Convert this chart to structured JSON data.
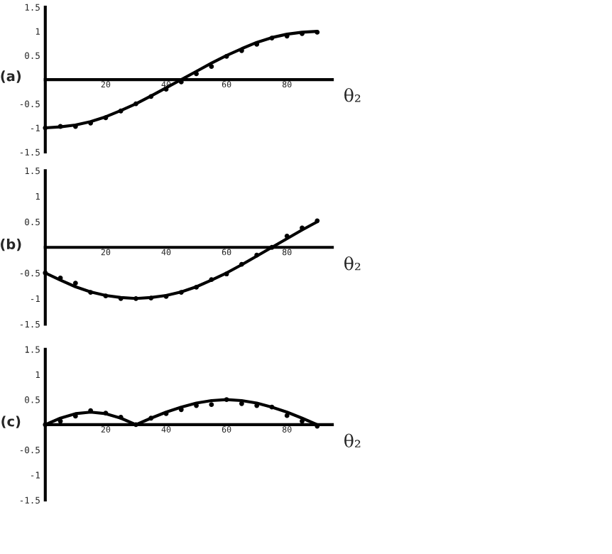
{
  "chart_data": [
    {
      "type": "line",
      "ylabel": "(a)",
      "xlabel": "θ₂",
      "xlim": [
        0,
        95
      ],
      "ylim": [
        -1.5,
        1.5
      ],
      "xticks": [
        20,
        40,
        60,
        80
      ],
      "yticks": [
        -1.5,
        -1,
        -0.5,
        0.5,
        1,
        1.5
      ],
      "grid": false,
      "legend": false,
      "x": [
        0,
        5,
        10,
        15,
        20,
        25,
        30,
        35,
        40,
        45,
        50,
        55,
        60,
        65,
        70,
        75,
        80,
        85,
        90
      ],
      "series": [
        {
          "color": "#000000",
          "marker": "none",
          "values": [
            -1,
            -0.98,
            -0.94,
            -0.87,
            -0.77,
            -0.64,
            -0.5,
            -0.34,
            -0.17,
            0,
            0.17,
            0.34,
            0.5,
            0.64,
            0.77,
            0.87,
            0.94,
            0.98,
            1
          ]
        },
        {
          "type": "scatter",
          "color": "#000000",
          "marker": "circle",
          "values": [
            -1,
            -0.97,
            -0.97,
            -0.9,
            -0.79,
            -0.65,
            -0.5,
            -0.35,
            -0.2,
            -0.05,
            0.12,
            0.27,
            0.48,
            0.6,
            0.73,
            0.86,
            0.9,
            0.95,
            0.98
          ]
        }
      ]
    },
    {
      "type": "line",
      "ylabel": "(b)",
      "xlabel": "θ₂",
      "xlim": [
        0,
        95
      ],
      "ylim": [
        -1.5,
        1.5
      ],
      "xticks": [
        20,
        40,
        60,
        80
      ],
      "yticks": [
        -1.5,
        -1,
        -0.5,
        0.5,
        1,
        1.5
      ],
      "grid": false,
      "legend": false,
      "x": [
        0,
        5,
        10,
        15,
        20,
        25,
        30,
        35,
        40,
        45,
        50,
        55,
        60,
        65,
        70,
        75,
        80,
        85,
        90
      ],
      "series": [
        {
          "color": "#000000",
          "marker": "none",
          "values": [
            -0.5,
            -0.64,
            -0.77,
            -0.87,
            -0.94,
            -0.98,
            -1,
            -0.98,
            -0.94,
            -0.87,
            -0.77,
            -0.64,
            -0.5,
            -0.34,
            -0.17,
            0,
            0.17,
            0.34,
            0.5
          ]
        },
        {
          "type": "scatter",
          "color": "#000000",
          "marker": "circle",
          "values": [
            -0.5,
            -0.6,
            -0.7,
            -0.88,
            -0.95,
            -1,
            -1,
            -0.99,
            -0.96,
            -0.88,
            -0.78,
            -0.63,
            -0.52,
            -0.33,
            -0.15,
            0,
            0.22,
            0.38,
            0.52
          ]
        }
      ]
    },
    {
      "type": "line",
      "ylabel": "(c)",
      "xlabel": "θ₂",
      "xlim": [
        0,
        95
      ],
      "ylim": [
        -1.5,
        1.5
      ],
      "xticks": [
        20,
        40,
        60,
        80
      ],
      "yticks": [
        -1.5,
        -1,
        -0.5,
        0.5,
        1,
        1.5
      ],
      "grid": false,
      "legend": false,
      "x": [
        0,
        5,
        10,
        15,
        20,
        25,
        30,
        35,
        40,
        45,
        50,
        55,
        60,
        65,
        70,
        75,
        80,
        85,
        90
      ],
      "series": [
        {
          "color": "#000000",
          "marker": "none",
          "values": [
            0,
            0.13,
            0.22,
            0.25,
            0.22,
            0.13,
            0,
            0.13,
            0.25,
            0.35,
            0.43,
            0.48,
            0.5,
            0.48,
            0.43,
            0.35,
            0.25,
            0.13,
            0
          ]
        },
        {
          "type": "scatter",
          "color": "#000000",
          "marker": "circle",
          "values": [
            0,
            0.07,
            0.17,
            0.28,
            0.23,
            0.15,
            0,
            0.13,
            0.22,
            0.3,
            0.38,
            0.4,
            0.5,
            0.42,
            0.38,
            0.35,
            0.18,
            0.07,
            -0.03
          ]
        }
      ]
    }
  ]
}
